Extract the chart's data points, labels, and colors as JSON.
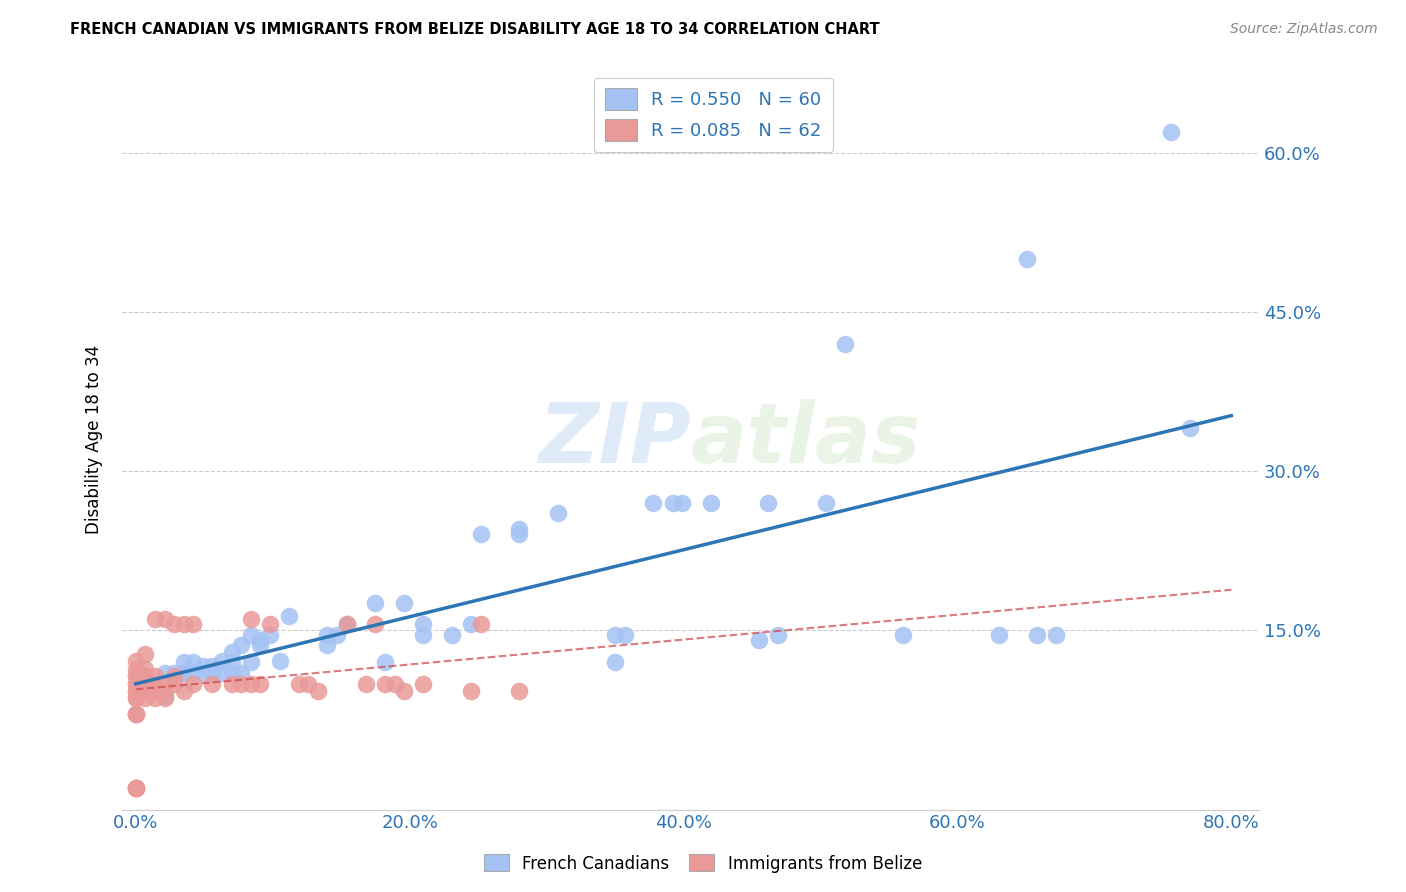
{
  "title": "FRENCH CANADIAN VS IMMIGRANTS FROM BELIZE DISABILITY AGE 18 TO 34 CORRELATION CHART",
  "source": "Source: ZipAtlas.com",
  "ylabel": "Disability Age 18 to 34",
  "xlim": [
    -0.01,
    0.82
  ],
  "ylim": [
    -0.02,
    0.68
  ],
  "xticks": [
    0.0,
    0.2,
    0.4,
    0.6,
    0.8
  ],
  "yticks": [
    0.15,
    0.3,
    0.45,
    0.6
  ],
  "ytick_labels_right": [
    "15.0%",
    "30.0%",
    "45.0%",
    "60.0%"
  ],
  "xtick_labels": [
    "0.0%",
    "20.0%",
    "40.0%",
    "60.0%",
    "80.0%"
  ],
  "blue_color": "#a4c2f4",
  "pink_color": "#ea9999",
  "line_blue": "#2e75b6",
  "line_pink_color": "#cc4444",
  "watermark_zip": "ZIP",
  "watermark_atlas": "atlas",
  "french_canadian_x": [
    0.021,
    0.021,
    0.028,
    0.035,
    0.035,
    0.035,
    0.042,
    0.042,
    0.049,
    0.049,
    0.056,
    0.056,
    0.063,
    0.063,
    0.07,
    0.07,
    0.07,
    0.077,
    0.077,
    0.084,
    0.084,
    0.091,
    0.091,
    0.098,
    0.105,
    0.112,
    0.14,
    0.14,
    0.147,
    0.154,
    0.175,
    0.182,
    0.196,
    0.21,
    0.21,
    0.231,
    0.245,
    0.252,
    0.28,
    0.28,
    0.308,
    0.35,
    0.35,
    0.357,
    0.378,
    0.392,
    0.399,
    0.42,
    0.455,
    0.462,
    0.469,
    0.504,
    0.518,
    0.56,
    0.63,
    0.651,
    0.658,
    0.672,
    0.756,
    0.77
  ],
  "french_canadian_y": [
    0.087,
    0.109,
    0.109,
    0.109,
    0.119,
    0.109,
    0.119,
    0.109,
    0.109,
    0.116,
    0.109,
    0.116,
    0.12,
    0.109,
    0.109,
    0.129,
    0.119,
    0.135,
    0.109,
    0.145,
    0.119,
    0.14,
    0.135,
    0.145,
    0.12,
    0.163,
    0.145,
    0.135,
    0.145,
    0.155,
    0.175,
    0.119,
    0.175,
    0.145,
    0.155,
    0.145,
    0.155,
    0.24,
    0.24,
    0.245,
    0.26,
    0.119,
    0.145,
    0.145,
    0.27,
    0.27,
    0.27,
    0.27,
    0.14,
    0.27,
    0.145,
    0.27,
    0.42,
    0.145,
    0.145,
    0.5,
    0.145,
    0.145,
    0.62,
    0.34
  ],
  "belize_x": [
    0.0,
    0.0,
    0.0,
    0.0,
    0.0,
    0.0,
    0.0,
    0.0,
    0.0,
    0.0,
    0.0,
    0.0,
    0.0,
    0.0,
    0.0,
    0.0,
    0.0,
    0.007,
    0.007,
    0.007,
    0.007,
    0.007,
    0.007,
    0.007,
    0.007,
    0.007,
    0.014,
    0.014,
    0.014,
    0.014,
    0.014,
    0.021,
    0.021,
    0.021,
    0.021,
    0.028,
    0.028,
    0.028,
    0.035,
    0.035,
    0.042,
    0.042,
    0.056,
    0.07,
    0.077,
    0.084,
    0.084,
    0.091,
    0.098,
    0.119,
    0.126,
    0.133,
    0.154,
    0.168,
    0.175,
    0.182,
    0.189,
    0.196,
    0.21,
    0.245,
    0.252,
    0.28
  ],
  "belize_y": [
    0.0,
    0.0,
    0.0,
    0.0,
    0.07,
    0.07,
    0.07,
    0.085,
    0.085,
    0.092,
    0.092,
    0.099,
    0.099,
    0.106,
    0.106,
    0.113,
    0.12,
    0.085,
    0.092,
    0.092,
    0.099,
    0.099,
    0.106,
    0.106,
    0.113,
    0.127,
    0.085,
    0.092,
    0.099,
    0.106,
    0.16,
    0.085,
    0.092,
    0.099,
    0.16,
    0.099,
    0.106,
    0.155,
    0.092,
    0.155,
    0.099,
    0.155,
    0.099,
    0.099,
    0.099,
    0.099,
    0.16,
    0.099,
    0.155,
    0.099,
    0.099,
    0.092,
    0.155,
    0.099,
    0.155,
    0.099,
    0.099,
    0.092,
    0.099,
    0.092,
    0.155,
    0.092
  ],
  "background_color": "#ffffff",
  "grid_color": "#cccccc"
}
